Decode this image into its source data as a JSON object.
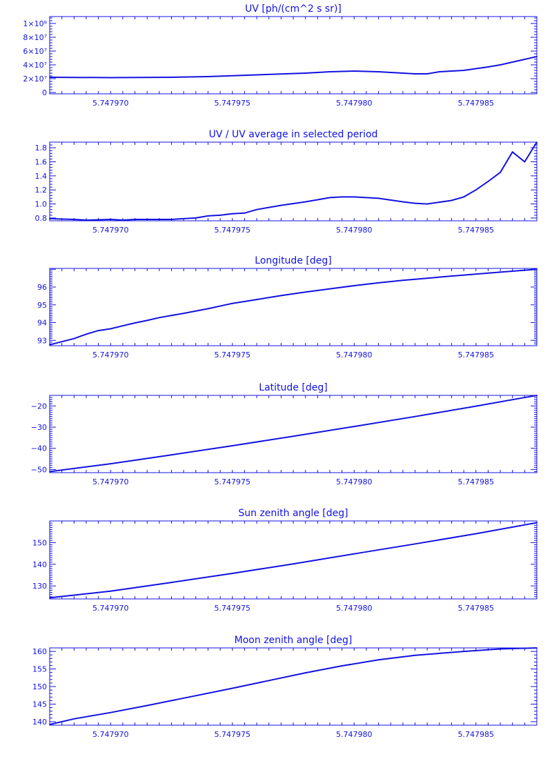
{
  "chart_data": [
    {
      "type": "line",
      "title": "UV [ph/(cm^2 s sr)]",
      "xlim": [
        5.7479675,
        5.7479875
      ],
      "ylim": [
        -2000000,
        110000000
      ],
      "x_ticks": [
        5.74797,
        5.747975,
        5.74798,
        5.747985
      ],
      "x_tick_labels": [
        "5.747970",
        "5.747975",
        "5.747980",
        "5.747985"
      ],
      "y_ticks": [
        0,
        20000000,
        40000000,
        60000000,
        80000000,
        100000000
      ],
      "y_tick_labels": [
        "0",
        "2×10⁷",
        "4×10⁷",
        "6×10⁷",
        "8×10⁷",
        "1×10⁸"
      ],
      "y_minor_count": 4,
      "x": [
        5.7479675,
        5.74797,
        5.7479725,
        5.747974,
        5.747976,
        5.747978,
        5.747979,
        5.74798,
        5.747981,
        5.7479825,
        5.747983,
        5.7479835,
        5.7479845,
        5.7479855,
        5.747986,
        5.7479865,
        5.747987,
        5.7479875
      ],
      "series": [
        {
          "values": [
            22000000,
            21500000,
            22000000,
            23000000,
            25500000,
            28000000,
            30000000,
            31000000,
            30000000,
            27000000,
            27000000,
            30000000,
            32000000,
            37000000,
            40000000,
            44000000,
            48000000,
            52000000
          ]
        }
      ]
    },
    {
      "type": "line",
      "title": "UV / UV average in selected period",
      "xlim": [
        5.7479675,
        5.7479875
      ],
      "ylim": [
        0.76,
        1.88
      ],
      "x_ticks": [
        5.74797,
        5.747975,
        5.74798,
        5.747985
      ],
      "x_tick_labels": [
        "5.747970",
        "5.747975",
        "5.747980",
        "5.747985"
      ],
      "y_ticks": [
        0.8,
        1.0,
        1.2,
        1.4,
        1.6,
        1.8
      ],
      "y_tick_labels": [
        "0.8",
        "1.0",
        "1.2",
        "1.4",
        "1.6",
        "1.8"
      ],
      "y_minor_count": 4,
      "x": [
        5.7479675,
        5.7479685,
        5.747969,
        5.74797,
        5.7479705,
        5.747971,
        5.7479725,
        5.747973,
        5.7479735,
        5.747974,
        5.7479745,
        5.747975,
        5.7479755,
        5.747976,
        5.747977,
        5.747978,
        5.7479785,
        5.747979,
        5.7479795,
        5.74798,
        5.7479805,
        5.747981,
        5.747982,
        5.7479825,
        5.747983,
        5.747984,
        5.7479845,
        5.747985,
        5.7479855,
        5.747986,
        5.7479865,
        5.747987,
        5.7479875
      ],
      "series": [
        {
          "values": [
            0.79,
            0.78,
            0.77,
            0.78,
            0.77,
            0.78,
            0.78,
            0.79,
            0.8,
            0.83,
            0.84,
            0.86,
            0.87,
            0.92,
            0.98,
            1.03,
            1.06,
            1.09,
            1.1,
            1.1,
            1.09,
            1.08,
            1.03,
            1.01,
            1.0,
            1.05,
            1.1,
            1.2,
            1.32,
            1.45,
            1.74,
            1.6,
            1.88
          ]
        }
      ]
    },
    {
      "type": "line",
      "title": "Longitude [deg]",
      "xlim": [
        5.7479675,
        5.7479875
      ],
      "ylim": [
        92.7,
        97.05
      ],
      "x_ticks": [
        5.74797,
        5.747975,
        5.74798,
        5.747985
      ],
      "x_tick_labels": [
        "5.747970",
        "5.747975",
        "5.747980",
        "5.747985"
      ],
      "y_ticks": [
        93,
        94,
        95,
        96
      ],
      "y_tick_labels": [
        "93",
        "94",
        "95",
        "96"
      ],
      "y_minor_count": 9,
      "x": [
        5.7479675,
        5.7479685,
        5.747969,
        5.7479695,
        5.74797,
        5.7479705,
        5.747971,
        5.7479715,
        5.747972,
        5.747973,
        5.747974,
        5.747975,
        5.747976,
        5.747977,
        5.747978,
        5.747979,
        5.74798,
        5.747981,
        5.747982,
        5.747983,
        5.747984,
        5.747985,
        5.747986,
        5.747987,
        5.7479875
      ],
      "series": [
        {
          "values": [
            92.75,
            93.1,
            93.35,
            93.55,
            93.65,
            93.82,
            93.98,
            94.12,
            94.28,
            94.52,
            94.78,
            95.08,
            95.3,
            95.52,
            95.72,
            95.9,
            96.08,
            96.24,
            96.38,
            96.5,
            96.62,
            96.73,
            96.84,
            96.95,
            97.0
          ]
        }
      ]
    },
    {
      "type": "line",
      "title": "Latitude [deg]",
      "xlim": [
        5.7479675,
        5.7479875
      ],
      "ylim": [
        -51.5,
        -15
      ],
      "x_ticks": [
        5.74797,
        5.747975,
        5.74798,
        5.747985
      ],
      "x_tick_labels": [
        "5.747970",
        "5.747975",
        "5.747980",
        "5.747985"
      ],
      "y_ticks": [
        -50,
        -40,
        -30,
        -20
      ],
      "y_tick_labels": [
        "−50",
        "−40",
        "−30",
        "−20"
      ],
      "y_minor_count": 9,
      "x": [
        5.7479675,
        5.74797,
        5.7479725,
        5.747975,
        5.7479775,
        5.74798,
        5.7479825,
        5.747985,
        5.7479875
      ],
      "series": [
        {
          "values": [
            -51,
            -47.3,
            -43.1,
            -38.8,
            -34.3,
            -29.7,
            -25.0,
            -20.1,
            -15.0
          ]
        }
      ]
    },
    {
      "type": "line",
      "title": "Sun zenith angle [deg]",
      "xlim": [
        5.7479675,
        5.7479875
      ],
      "ylim": [
        124,
        160
      ],
      "x_ticks": [
        5.74797,
        5.747975,
        5.74798,
        5.747985
      ],
      "x_tick_labels": [
        "5.747970",
        "5.747975",
        "5.747980",
        "5.747985"
      ],
      "y_ticks": [
        130,
        140,
        150
      ],
      "y_tick_labels": [
        "130",
        "140",
        "150"
      ],
      "y_minor_count": 9,
      "x": [
        5.7479675,
        5.74797,
        5.7479725,
        5.747975,
        5.7479775,
        5.74798,
        5.7479825,
        5.747985,
        5.7479875
      ],
      "series": [
        {
          "values": [
            124.5,
            127.6,
            131.6,
            135.8,
            140.2,
            144.8,
            149.4,
            154.1,
            159.2
          ]
        }
      ]
    },
    {
      "type": "line",
      "title": "Moon zenith angle [deg]",
      "xlim": [
        5.7479675,
        5.7479875
      ],
      "ylim": [
        139,
        161
      ],
      "x_ticks": [
        5.74797,
        5.747975,
        5.74798,
        5.747985
      ],
      "x_tick_labels": [
        "5.747970",
        "5.747975",
        "5.747980",
        "5.747985"
      ],
      "y_ticks": [
        140,
        145,
        150,
        155,
        160
      ],
      "y_tick_labels": [
        "140",
        "145",
        "150",
        "155",
        "160"
      ],
      "y_minor_count": 4,
      "x": [
        5.7479675,
        5.7479685,
        5.74797,
        5.7479715,
        5.747973,
        5.747975,
        5.7479765,
        5.747978,
        5.7479795,
        5.747981,
        5.7479825,
        5.7479845,
        5.747986,
        5.7479875
      ],
      "series": [
        {
          "values": [
            139.2,
            140.8,
            142.6,
            144.6,
            146.7,
            149.5,
            151.7,
            153.9,
            155.9,
            157.6,
            158.9,
            160.0,
            160.7,
            161.0
          ]
        }
      ]
    }
  ],
  "colors": {
    "ink": "#1010e0",
    "background": "#ffffff"
  }
}
